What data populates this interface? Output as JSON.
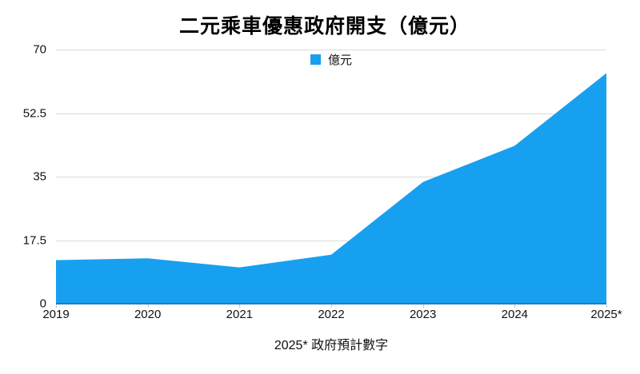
{
  "page": {
    "background": "#ffffff"
  },
  "chart": {
    "title": "二元乘車優惠政府開支（億元）",
    "legend_label": "億元",
    "footnote": "2025* 政府預計數字"
  },
  "chart_data": {
    "type": "area",
    "title": "二元乘車優惠政府開支（億元）",
    "categories": [
      "2019",
      "2020",
      "2021",
      "2022",
      "2023",
      "2024",
      "2025*"
    ],
    "series": [
      {
        "name": "億元",
        "values": [
          12,
          12.5,
          10,
          13.5,
          33.5,
          43.5,
          63.5
        ]
      }
    ],
    "xlabel": "",
    "ylabel": "",
    "ylim": [
      0,
      70
    ],
    "y_ticks": [
      0,
      17.5,
      35,
      52.5,
      70
    ],
    "grid": "horizontal",
    "legend_position": "top-center",
    "footnote": "2025* 政府預計數字",
    "colors": {
      "area": "#18a0f0",
      "gridline": "#dcdcdc",
      "axis_line": "#2b7ab8",
      "text": "#111111",
      "title": "#000000"
    }
  }
}
